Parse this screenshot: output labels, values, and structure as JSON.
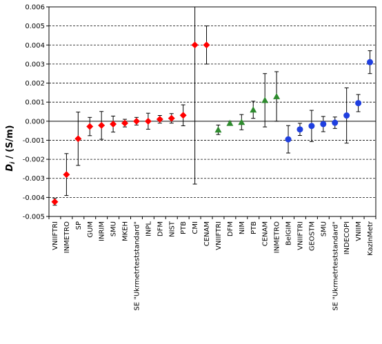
{
  "chart_data": {
    "type": "scatter",
    "ylabel": {
      "symbol": "D",
      "subscript": "i",
      "rest": " / (S/m)"
    },
    "ylim": [
      -0.005,
      0.006
    ],
    "yticks": [
      "-0.005",
      "-0.004",
      "-0.003",
      "-0.002",
      "-0.001",
      "0.000",
      "0.001",
      "0.002",
      "0.003",
      "0.004",
      "0.005",
      "0.006"
    ],
    "grid": "horizontal dashed",
    "colors": {
      "red": "#ff0000",
      "green": "#2e8b2e",
      "blue": "#1f3fe0"
    },
    "points": [
      {
        "label": "VNIIFTRI",
        "y": -0.00423,
        "err": 0.00018,
        "group": "red",
        "marker": "diamond"
      },
      {
        "label": "INMETRO",
        "y": -0.0028,
        "err": 0.0011,
        "group": "red",
        "marker": "diamond"
      },
      {
        "label": "SP",
        "y": -0.00092,
        "err": 0.0014,
        "group": "red",
        "marker": "diamond"
      },
      {
        "label": "GUM",
        "y": -0.00028,
        "err": 0.00048,
        "group": "red",
        "marker": "diamond"
      },
      {
        "label": "INRIM",
        "y": -0.00022,
        "err": 0.00073,
        "group": "red",
        "marker": "diamond"
      },
      {
        "label": "SMU",
        "y": -0.00015,
        "err": 0.00042,
        "group": "red",
        "marker": "diamond"
      },
      {
        "label": "MKEH",
        "y": -0.0001,
        "err": 0.0002,
        "group": "red",
        "marker": "diamond"
      },
      {
        "label": "SE \"Ukrmetrteststandard\"",
        "y": 0.0,
        "err": 0.0002,
        "group": "red",
        "marker": "diamond"
      },
      {
        "label": "INPL",
        "y": 0.0,
        "err": 0.00042,
        "group": "red",
        "marker": "diamond"
      },
      {
        "label": "DFM",
        "y": 0.0001,
        "err": 0.0002,
        "group": "red",
        "marker": "diamond"
      },
      {
        "label": "NIST",
        "y": 0.00015,
        "err": 0.00025,
        "group": "red",
        "marker": "diamond"
      },
      {
        "label": "PTB",
        "y": 0.00031,
        "err": 0.00055,
        "group": "red",
        "marker": "diamond"
      },
      {
        "label": "CMI",
        "y": 0.004,
        "err": 0.0073,
        "group": "red",
        "marker": "diamond"
      },
      {
        "label": "CENAM",
        "y": 0.004,
        "err": 0.001,
        "group": "red",
        "marker": "diamond"
      },
      {
        "label": "VNIIFTRI",
        "y": -0.00045,
        "err": 0.00025,
        "group": "green",
        "marker": "triangle"
      },
      {
        "label": "DFM",
        "y": -0.0001,
        "err": 0.0001,
        "group": "green",
        "marker": "triangle"
      },
      {
        "label": "NIM",
        "y": -5e-05,
        "err": 0.0004,
        "group": "green",
        "marker": "triangle"
      },
      {
        "label": "PTB",
        "y": 0.0006,
        "err": 0.00045,
        "group": "green",
        "marker": "triangle"
      },
      {
        "label": "CENAM",
        "y": 0.0011,
        "err": 0.0014,
        "group": "green",
        "marker": "triangle"
      },
      {
        "label": "INMETRO",
        "y": 0.0013,
        "err": 0.0013,
        "group": "green",
        "marker": "triangle"
      },
      {
        "label": "BelGIM",
        "y": -0.00095,
        "err": 0.00072,
        "group": "blue",
        "marker": "circle"
      },
      {
        "label": "VNIIFTRI",
        "y": -0.00043,
        "err": 0.00032,
        "group": "blue",
        "marker": "circle"
      },
      {
        "label": "GEOSTM",
        "y": -0.00025,
        "err": 0.00082,
        "group": "blue",
        "marker": "circle"
      },
      {
        "label": "SMU",
        "y": -0.00015,
        "err": 0.0004,
        "group": "blue",
        "marker": "circle"
      },
      {
        "label": "SE \"Ukrmetrteststandard\"",
        "y": -8e-05,
        "err": 0.0003,
        "group": "blue",
        "marker": "circle"
      },
      {
        "label": "INDECOPI",
        "y": 0.0003,
        "err": 0.00145,
        "group": "blue",
        "marker": "circle"
      },
      {
        "label": "VNIIM",
        "y": 0.00095,
        "err": 0.00045,
        "group": "blue",
        "marker": "circle"
      },
      {
        "label": "KazInMetr",
        "y": 0.0031,
        "err": 0.0006,
        "group": "blue",
        "marker": "circle"
      }
    ]
  }
}
